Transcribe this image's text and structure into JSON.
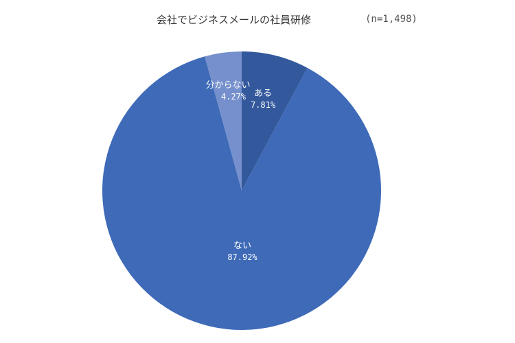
{
  "chart_data": {
    "type": "pie",
    "title": "会社でビジネスメールの社員研修",
    "sample_size": "(n=1,498)",
    "slices": [
      {
        "label": "ある",
        "value": 7.81,
        "display": "7.81%",
        "color": "#33599c"
      },
      {
        "label": "ない",
        "value": 87.92,
        "display": "87.92%",
        "color": "#3e6ab8"
      },
      {
        "label": "分からない",
        "value": 4.27,
        "display": "4.27%",
        "color": "#7590cc"
      }
    ],
    "start_angle_deg": 0,
    "direction": "clockwise",
    "legend": "none",
    "labels_inside": true
  }
}
